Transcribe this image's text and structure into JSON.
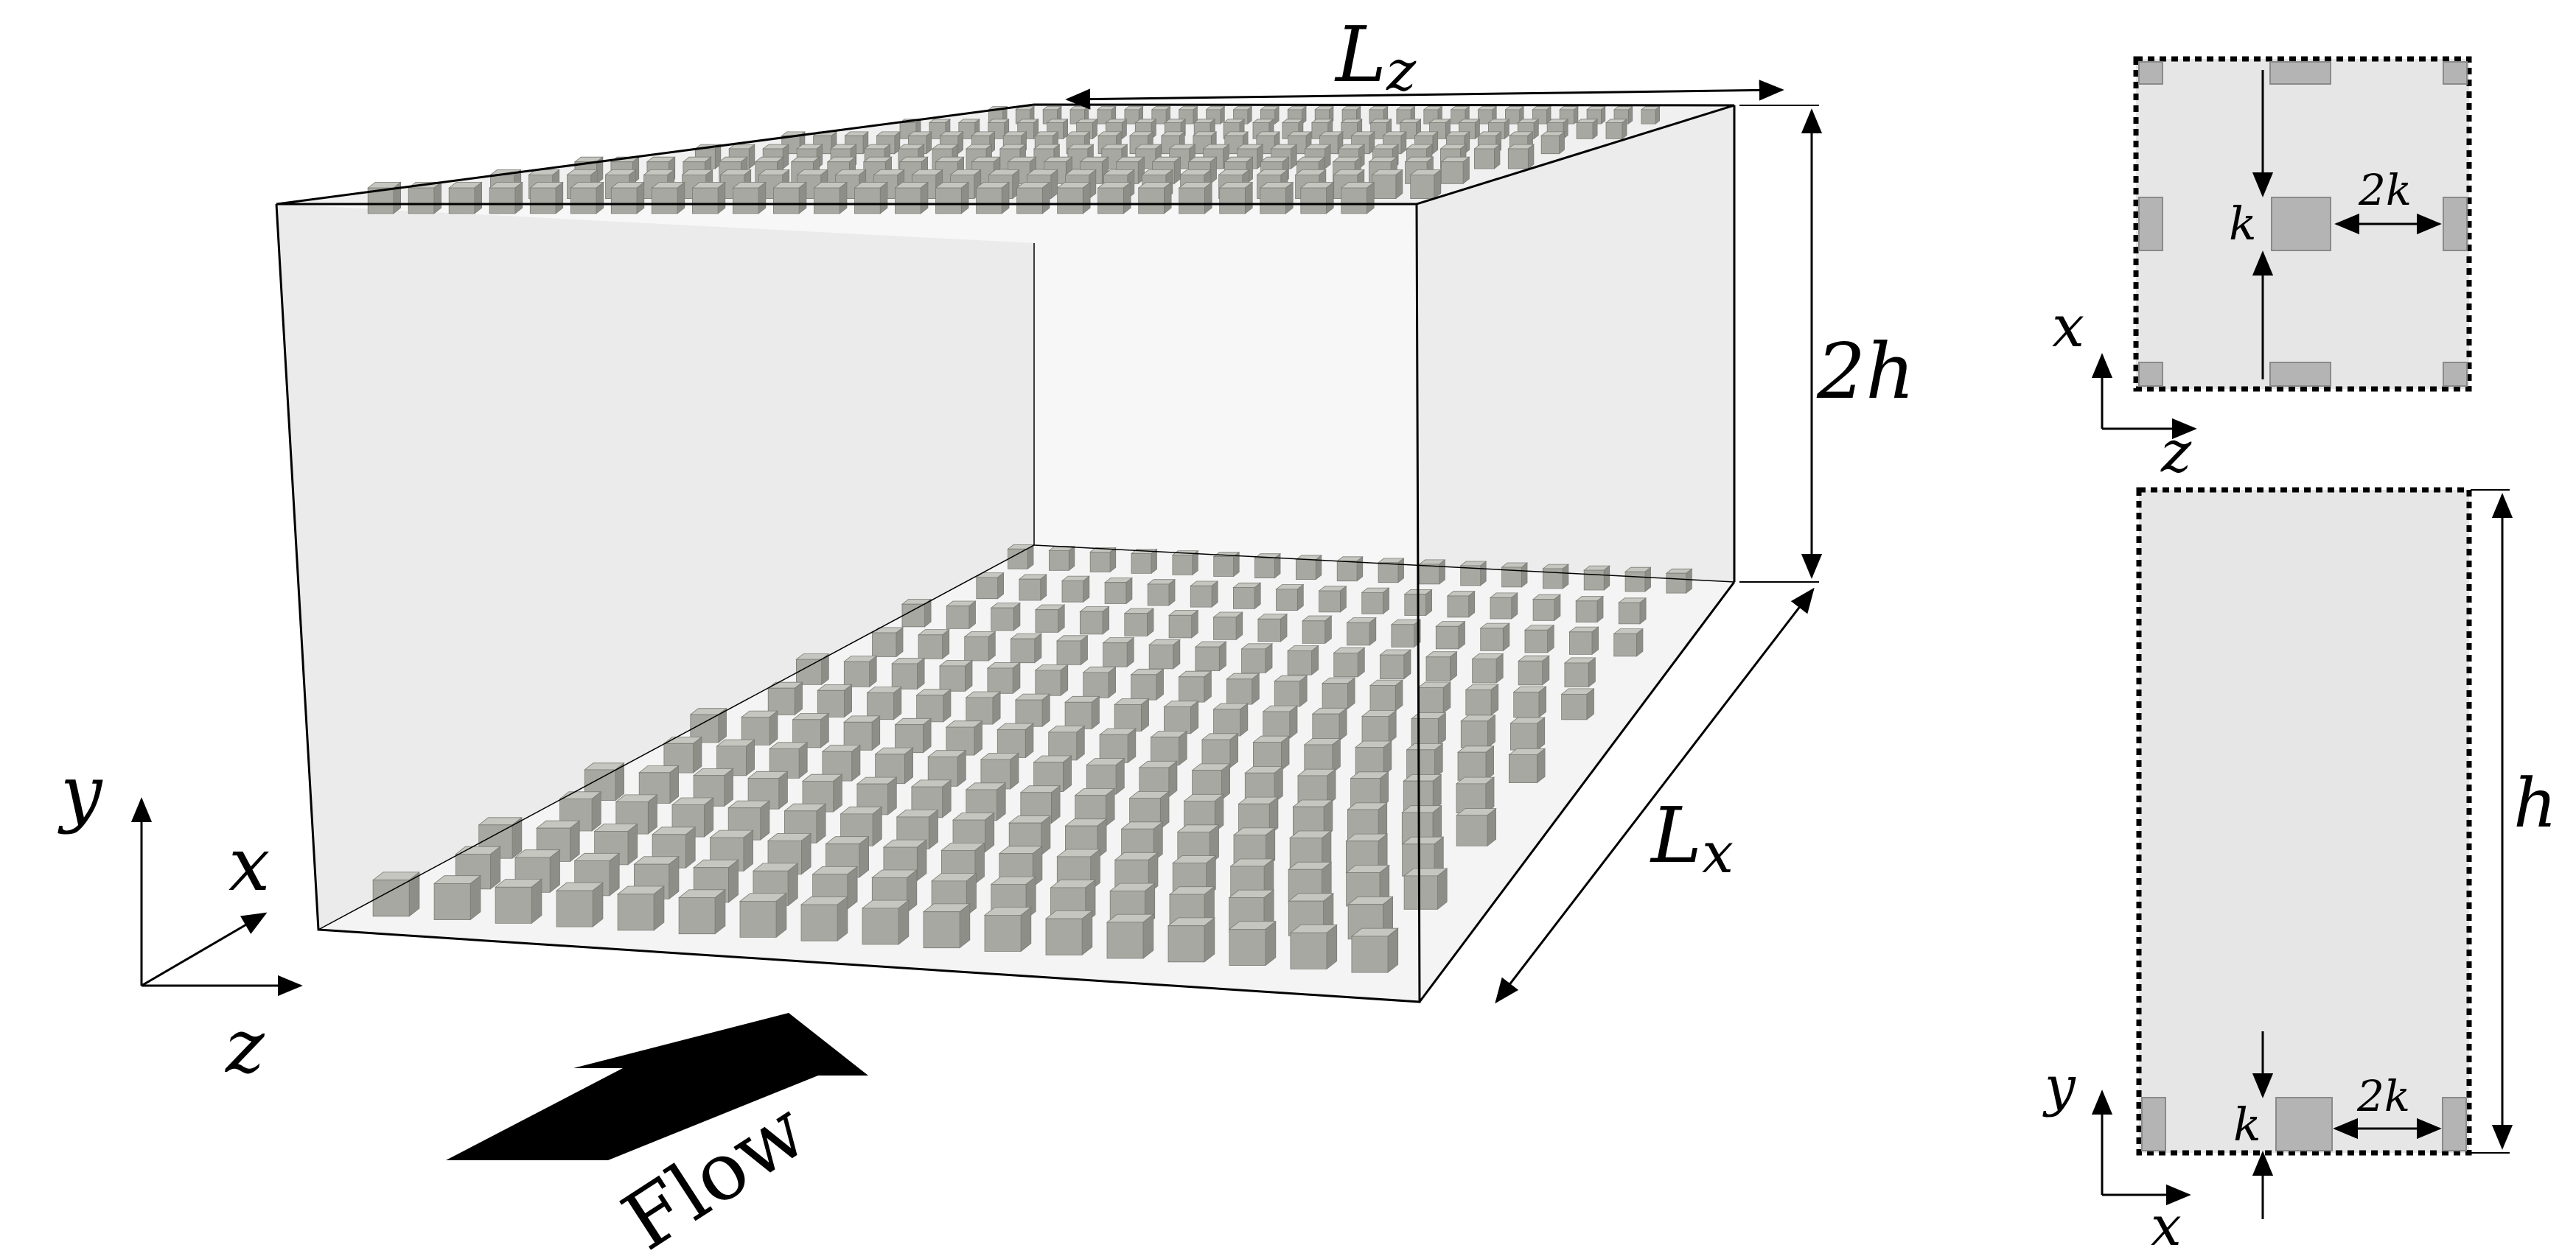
{
  "labels": {
    "Lz": "L",
    "Lz_sub": "z",
    "Lx": "L",
    "Lx_sub": "x",
    "height": "2h",
    "flow": "Flow",
    "axis_y": "y",
    "axis_x": "x",
    "axis_z": "z"
  },
  "top_inset": {
    "axis_vertical": "x",
    "axis_horizontal": "z",
    "k_label": "k",
    "spacing_label": "2k"
  },
  "side_inset": {
    "axis_vertical": "y",
    "axis_horizontal": "x",
    "k_label": "k",
    "spacing_label": "2k",
    "height_label": "h"
  },
  "colors": {
    "cube_top": "#c6c6c0",
    "cube_front": "#a8a8a2",
    "cube_side": "#8e8e88",
    "inset_fill": "#e6e6e6",
    "inset_block": "#b4b4b4"
  }
}
